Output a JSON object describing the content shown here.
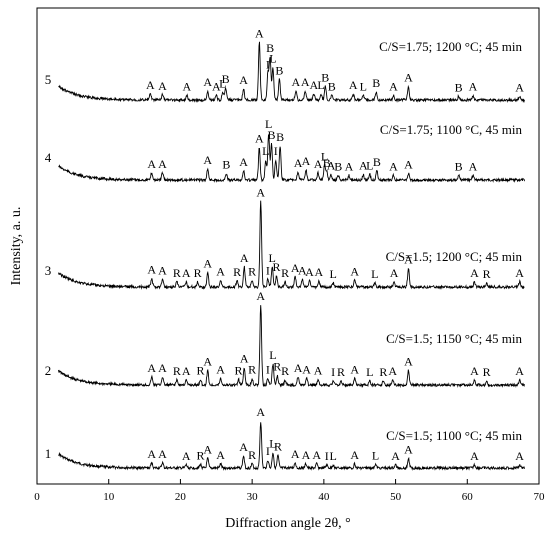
{
  "chart_data": {
    "type": "line",
    "xlabel": "Diffraction angle 2θ, °",
    "ylabel": "Intensity, a. u.",
    "xlim": [
      0,
      70
    ],
    "x_ticks": [
      0,
      10,
      20,
      30,
      40,
      50,
      60,
      70
    ],
    "grid": false,
    "series": [
      {
        "index": "1",
        "condition": "C/S=1.5; 1100 °C; 45 min",
        "peaks": [
          {
            "x": 16.0,
            "h": 0.1,
            "label": "A"
          },
          {
            "x": 17.5,
            "h": 0.1,
            "label": "A"
          },
          {
            "x": 20.8,
            "h": 0.06,
            "label": "A"
          },
          {
            "x": 22.8,
            "h": 0.07,
            "label": "R"
          },
          {
            "x": 23.8,
            "h": 0.18,
            "label": "A"
          },
          {
            "x": 25.6,
            "h": 0.08,
            "label": "A"
          },
          {
            "x": 28.8,
            "h": 0.23,
            "label": "A"
          },
          {
            "x": 30.0,
            "h": 0.08,
            "label": "R"
          },
          {
            "x": 31.2,
            "h": 0.9,
            "label": "A"
          },
          {
            "x": 32.2,
            "h": 0.15,
            "label": "I"
          },
          {
            "x": 32.9,
            "h": 0.3,
            "label": "L"
          },
          {
            "x": 33.6,
            "h": 0.24,
            "label": "R"
          },
          {
            "x": 36.0,
            "h": 0.1,
            "label": "A"
          },
          {
            "x": 37.5,
            "h": 0.08,
            "label": "A"
          },
          {
            "x": 39.0,
            "h": 0.08,
            "label": "A"
          },
          {
            "x": 40.4,
            "h": 0.06,
            "label": "I"
          },
          {
            "x": 41.3,
            "h": 0.06,
            "label": "L"
          },
          {
            "x": 44.3,
            "h": 0.08,
            "label": "A"
          },
          {
            "x": 47.2,
            "h": 0.07,
            "label": "L"
          },
          {
            "x": 50.0,
            "h": 0.06,
            "label": "A"
          },
          {
            "x": 51.8,
            "h": 0.18,
            "label": "A"
          },
          {
            "x": 61.0,
            "h": 0.06,
            "label": "A"
          },
          {
            "x": 67.3,
            "h": 0.06,
            "label": "A"
          }
        ]
      },
      {
        "index": "2",
        "condition": "C/S=1.5; 1150 °C; 45 min",
        "peaks": [
          {
            "x": 16.0,
            "h": 0.1,
            "label": "A"
          },
          {
            "x": 17.5,
            "h": 0.1,
            "label": "A"
          },
          {
            "x": 19.5,
            "h": 0.06,
            "label": "R"
          },
          {
            "x": 20.8,
            "h": 0.06,
            "label": "A"
          },
          {
            "x": 22.8,
            "h": 0.07,
            "label": "R"
          },
          {
            "x": 23.8,
            "h": 0.18,
            "label": "A"
          },
          {
            "x": 25.6,
            "h": 0.08,
            "label": "A"
          },
          {
            "x": 28.1,
            "h": 0.07,
            "label": "R"
          },
          {
            "x": 28.9,
            "h": 0.22,
            "label": "A"
          },
          {
            "x": 30.0,
            "h": 0.08,
            "label": "R"
          },
          {
            "x": 31.2,
            "h": 1.0,
            "label": "A"
          },
          {
            "x": 32.2,
            "h": 0.08,
            "label": "I"
          },
          {
            "x": 32.9,
            "h": 0.26,
            "label": "L"
          },
          {
            "x": 33.5,
            "h": 0.12,
            "label": "R"
          },
          {
            "x": 34.6,
            "h": 0.06,
            "label": "R"
          },
          {
            "x": 36.4,
            "h": 0.1,
            "label": "A"
          },
          {
            "x": 37.6,
            "h": 0.08,
            "label": "A"
          },
          {
            "x": 39.2,
            "h": 0.07,
            "label": "A"
          },
          {
            "x": 41.3,
            "h": 0.05,
            "label": "I"
          },
          {
            "x": 42.4,
            "h": 0.05,
            "label": "R"
          },
          {
            "x": 44.3,
            "h": 0.08,
            "label": "A"
          },
          {
            "x": 46.4,
            "h": 0.05,
            "label": "L"
          },
          {
            "x": 48.3,
            "h": 0.05,
            "label": "R"
          },
          {
            "x": 49.6,
            "h": 0.06,
            "label": "A"
          },
          {
            "x": 51.8,
            "h": 0.18,
            "label": "A"
          },
          {
            "x": 61.0,
            "h": 0.06,
            "label": "A"
          },
          {
            "x": 62.7,
            "h": 0.05,
            "label": "R"
          },
          {
            "x": 67.3,
            "h": 0.06,
            "label": "A"
          }
        ]
      },
      {
        "index": "3",
        "condition": "C/S=1.5; 1200 °C; 45 min",
        "peaks": [
          {
            "x": 16.0,
            "h": 0.1,
            "label": "A"
          },
          {
            "x": 17.5,
            "h": 0.09,
            "label": "A"
          },
          {
            "x": 19.5,
            "h": 0.06,
            "label": "R"
          },
          {
            "x": 20.8,
            "h": 0.06,
            "label": "A"
          },
          {
            "x": 22.4,
            "h": 0.06,
            "label": "R"
          },
          {
            "x": 23.8,
            "h": 0.17,
            "label": "A"
          },
          {
            "x": 25.6,
            "h": 0.08,
            "label": "A"
          },
          {
            "x": 27.9,
            "h": 0.07,
            "label": "R"
          },
          {
            "x": 28.9,
            "h": 0.24,
            "label": "A"
          },
          {
            "x": 30.0,
            "h": 0.08,
            "label": "R"
          },
          {
            "x": 31.2,
            "h": 1.02,
            "label": "A"
          },
          {
            "x": 32.2,
            "h": 0.09,
            "label": "I"
          },
          {
            "x": 32.8,
            "h": 0.24,
            "label": "L"
          },
          {
            "x": 33.4,
            "h": 0.13,
            "label": "R"
          },
          {
            "x": 34.6,
            "h": 0.06,
            "label": "R"
          },
          {
            "x": 36.0,
            "h": 0.12,
            "label": "A"
          },
          {
            "x": 37.0,
            "h": 0.09,
            "label": "A"
          },
          {
            "x": 38.0,
            "h": 0.07,
            "label": "A"
          },
          {
            "x": 39.3,
            "h": 0.07,
            "label": "A"
          },
          {
            "x": 41.3,
            "h": 0.05,
            "label": "L"
          },
          {
            "x": 44.3,
            "h": 0.08,
            "label": "A"
          },
          {
            "x": 47.1,
            "h": 0.05,
            "label": "L"
          },
          {
            "x": 49.8,
            "h": 0.06,
            "label": "A"
          },
          {
            "x": 51.8,
            "h": 0.22,
            "label": "A"
          },
          {
            "x": 61.0,
            "h": 0.06,
            "label": "A"
          },
          {
            "x": 62.7,
            "h": 0.05,
            "label": "R"
          },
          {
            "x": 67.3,
            "h": 0.06,
            "label": "A"
          }
        ]
      },
      {
        "index": "4",
        "condition": "C/S=1.75; 1100 °C, 45 min",
        "peaks": [
          {
            "x": 16.0,
            "h": 0.08,
            "label": "A"
          },
          {
            "x": 17.5,
            "h": 0.08,
            "label": "A"
          },
          {
            "x": 23.8,
            "h": 0.12,
            "label": "A"
          },
          {
            "x": 26.4,
            "h": 0.07,
            "label": "B"
          },
          {
            "x": 28.8,
            "h": 0.1,
            "label": "A"
          },
          {
            "x": 31.0,
            "h": 0.36,
            "label": "A"
          },
          {
            "x": 31.9,
            "h": 0.22,
            "label": "L"
          },
          {
            "x": 32.3,
            "h": 0.52,
            "label": "L"
          },
          {
            "x": 32.7,
            "h": 0.4,
            "label": "B"
          },
          {
            "x": 33.3,
            "h": 0.22,
            "label": "I"
          },
          {
            "x": 33.9,
            "h": 0.38,
            "label": "B"
          },
          {
            "x": 36.4,
            "h": 0.09,
            "label": "A"
          },
          {
            "x": 37.5,
            "h": 0.11,
            "label": "A"
          },
          {
            "x": 39.2,
            "h": 0.08,
            "label": "A"
          },
          {
            "x": 40.1,
            "h": 0.16,
            "label": "L"
          },
          {
            "x": 40.4,
            "h": 0.09,
            "label": "B"
          },
          {
            "x": 41.0,
            "h": 0.06,
            "label": "A"
          },
          {
            "x": 42.0,
            "h": 0.05,
            "label": "B"
          },
          {
            "x": 43.5,
            "h": 0.05,
            "label": "A"
          },
          {
            "x": 45.5,
            "h": 0.06,
            "label": "A"
          },
          {
            "x": 46.4,
            "h": 0.06,
            "label": "L"
          },
          {
            "x": 47.4,
            "h": 0.1,
            "label": "B"
          },
          {
            "x": 49.7,
            "h": 0.05,
            "label": "A"
          },
          {
            "x": 51.8,
            "h": 0.07,
            "label": "A"
          },
          {
            "x": 58.8,
            "h": 0.05,
            "label": "B"
          },
          {
            "x": 60.8,
            "h": 0.05,
            "label": "A"
          }
        ]
      },
      {
        "index": "5",
        "condition": "C/S=1.75; 1200 °C; 45 min",
        "peaks": [
          {
            "x": 15.8,
            "h": 0.08,
            "label": "A"
          },
          {
            "x": 17.5,
            "h": 0.07,
            "label": "A"
          },
          {
            "x": 20.9,
            "h": 0.06,
            "label": "A"
          },
          {
            "x": 23.8,
            "h": 0.12,
            "label": "A"
          },
          {
            "x": 25.0,
            "h": 0.06,
            "label": "A"
          },
          {
            "x": 25.9,
            "h": 0.1,
            "label": "L"
          },
          {
            "x": 26.3,
            "h": 0.16,
            "label": "B"
          },
          {
            "x": 28.8,
            "h": 0.15,
            "label": "A"
          },
          {
            "x": 31.0,
            "h": 0.78,
            "label": "A"
          },
          {
            "x": 32.2,
            "h": 0.36,
            "label": "I"
          },
          {
            "x": 32.5,
            "h": 0.58,
            "label": "B"
          },
          {
            "x": 32.9,
            "h": 0.44,
            "label": "L"
          },
          {
            "x": 33.8,
            "h": 0.28,
            "label": "B"
          },
          {
            "x": 36.1,
            "h": 0.12,
            "label": "A"
          },
          {
            "x": 37.4,
            "h": 0.12,
            "label": "A"
          },
          {
            "x": 38.6,
            "h": 0.08,
            "label": "A"
          },
          {
            "x": 39.6,
            "h": 0.08,
            "label": "L"
          },
          {
            "x": 40.2,
            "h": 0.18,
            "label": "B"
          },
          {
            "x": 41.1,
            "h": 0.06,
            "label": "B"
          },
          {
            "x": 44.1,
            "h": 0.08,
            "label": "A"
          },
          {
            "x": 45.5,
            "h": 0.06,
            "label": "L"
          },
          {
            "x": 47.3,
            "h": 0.11,
            "label": "B"
          },
          {
            "x": 49.7,
            "h": 0.06,
            "label": "A"
          },
          {
            "x": 51.8,
            "h": 0.18,
            "label": "A"
          },
          {
            "x": 58.8,
            "h": 0.05,
            "label": "B"
          },
          {
            "x": 60.8,
            "h": 0.06,
            "label": "A"
          },
          {
            "x": 67.3,
            "h": 0.05,
            "label": "A"
          }
        ]
      }
    ]
  }
}
